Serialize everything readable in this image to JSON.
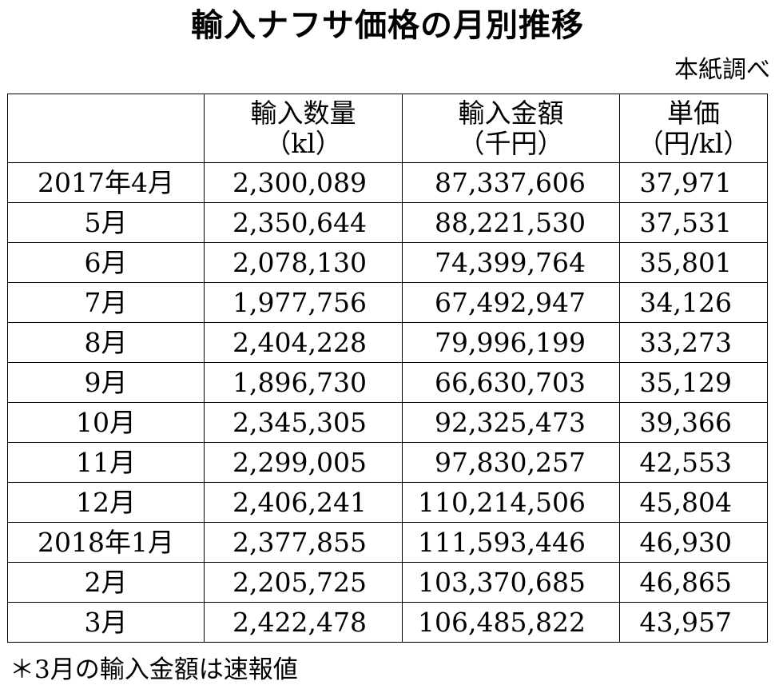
{
  "title": "輸入ナフサ価格の月別推移",
  "source": "本紙調べ",
  "headers": [
    {
      "line1": "",
      "line2": ""
    },
    {
      "line1": "輸入数量",
      "line2": "（kl）"
    },
    {
      "line1": "輸入金額",
      "line2": "（千円）"
    },
    {
      "line1": "単価",
      "line2": "（円/kl）"
    }
  ],
  "rows": [
    {
      "month": "2017年4月",
      "volume": "2,300,089",
      "amount": "87,337,606",
      "unit_price": "37,971"
    },
    {
      "month": "5月",
      "volume": "2,350,644",
      "amount": "88,221,530",
      "unit_price": "37,531"
    },
    {
      "month": "6月",
      "volume": "2,078,130",
      "amount": "74,399,764",
      "unit_price": "35,801"
    },
    {
      "month": "7月",
      "volume": "1,977,756",
      "amount": "67,492,947",
      "unit_price": "34,126"
    },
    {
      "month": "8月",
      "volume": "2,404,228",
      "amount": "79,996,199",
      "unit_price": "33,273"
    },
    {
      "month": "9月",
      "volume": "1,896,730",
      "amount": "66,630,703",
      "unit_price": "35,129"
    },
    {
      "month": "10月",
      "volume": "2,345,305",
      "amount": "92,325,473",
      "unit_price": "39,366"
    },
    {
      "month": "11月",
      "volume": "2,299,005",
      "amount": "97,830,257",
      "unit_price": "42,553"
    },
    {
      "month": "12月",
      "volume": "2,406,241",
      "amount": "110,214,506",
      "unit_price": "45,804"
    },
    {
      "month": "2018年1月",
      "volume": "2,377,855",
      "amount": "111,593,446",
      "unit_price": "46,930"
    },
    {
      "month": "2月",
      "volume": "2,205,725",
      "amount": "103,370,685",
      "unit_price": "46,865"
    },
    {
      "month": "3月",
      "volume": "2,422,478",
      "amount": "106,485,822",
      "unit_price": "43,957"
    }
  ],
  "note": "＊3月の輸入金額は速報値"
}
